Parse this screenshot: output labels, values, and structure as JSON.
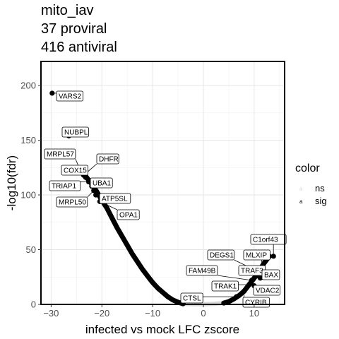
{
  "chart_data": {
    "type": "scatter",
    "title_lines": [
      "mito_iav",
      "37 proviral",
      "416 antiviral"
    ],
    "xlabel": "infected vs mock LFC zscore",
    "ylabel": "-log10(fdr)",
    "xlim": [
      -32,
      16
    ],
    "ylim": [
      0,
      222
    ],
    "x_ticks": [
      -30,
      -20,
      -10,
      0,
      10
    ],
    "x_tick_labels": [
      "−30",
      "−20",
      "−10",
      "0",
      "10"
    ],
    "y_ticks": [
      0,
      50,
      100,
      150,
      200
    ],
    "y_tick_labels": [
      "0",
      "50",
      "100",
      "150",
      "200"
    ],
    "grid": true,
    "legend": {
      "title": "color",
      "placement": "right",
      "entries": [
        {
          "key": "a",
          "label": "ns",
          "color": "#d9d9d9"
        },
        {
          "key": "a",
          "label": "sig",
          "color": "#000000"
        }
      ]
    },
    "curve": {
      "description_color_sig": "#000000",
      "description_color_ns": "#d9d9d9",
      "left_points": [
        [
          -24.0,
          122
        ],
        [
          -23.0,
          116
        ],
        [
          -22.0,
          110
        ],
        [
          -21.0,
          103
        ],
        [
          -20.0,
          95
        ],
        [
          -19.0,
          88
        ],
        [
          -18.0,
          79
        ],
        [
          -17.0,
          70
        ],
        [
          -16.0,
          62
        ],
        [
          -15.0,
          54
        ],
        [
          -14.0,
          46
        ],
        [
          -13.0,
          39
        ],
        [
          -12.0,
          32
        ],
        [
          -11.0,
          26
        ],
        [
          -10.0,
          20
        ],
        [
          -9.0,
          15
        ],
        [
          -8.0,
          11
        ],
        [
          -7.0,
          7
        ],
        [
          -6.0,
          4
        ],
        [
          -5.0,
          2
        ],
        [
          -4.0,
          0.5
        ]
      ],
      "ns_points": [
        [
          -4.0,
          0.5
        ],
        [
          -2.0,
          0.2
        ],
        [
          0.0,
          0.2
        ],
        [
          2.0,
          0.5
        ],
        [
          4.0,
          1.2
        ]
      ],
      "right_points": [
        [
          4.0,
          1.2
        ],
        [
          5.0,
          2.5
        ],
        [
          6.0,
          5
        ],
        [
          7.0,
          8
        ],
        [
          8.0,
          12
        ],
        [
          9.0,
          18
        ],
        [
          10.0,
          24
        ],
        [
          11.0,
          31
        ],
        [
          12.0,
          38
        ],
        [
          13.0,
          44
        ]
      ]
    },
    "points": [
      {
        "label": "VARS2",
        "x": -29.8,
        "y": 193,
        "color": "#000000"
      },
      {
        "label": "NUBPL",
        "x": -26.5,
        "y": 154,
        "color": "#000000"
      },
      {
        "label": "MRPL57",
        "x": -24.2,
        "y": 122,
        "color": "#000000"
      },
      {
        "label": "DHFR",
        "x": -23.6,
        "y": 118,
        "color": "#000000"
      },
      {
        "label": "COX15",
        "x": -23.2,
        "y": 116,
        "color": "#000000"
      },
      {
        "label": "TRIAP1",
        "x": -22.6,
        "y": 112,
        "color": "#000000"
      },
      {
        "label": "UBA1",
        "x": -22.0,
        "y": 108,
        "color": "#000000"
      },
      {
        "label": "MRPL50",
        "x": -21.6,
        "y": 104,
        "color": "#000000"
      },
      {
        "label": "ATP5SL",
        "x": -21.2,
        "y": 100,
        "color": "#000000"
      },
      {
        "label": "OPA1",
        "x": -20.4,
        "y": 94,
        "color": "#000000"
      },
      {
        "label": "C1orf43",
        "x": 13.8,
        "y": 44,
        "color": "#000000"
      },
      {
        "label": "MLXIP",
        "x": 11.5,
        "y": 34,
        "color": "#000000"
      },
      {
        "label": "DEGS1",
        "x": 10.8,
        "y": 30,
        "color": "#000000"
      },
      {
        "label": "TRAF3",
        "x": 10.6,
        "y": 26,
        "color": "#000000"
      },
      {
        "label": "FAM49B",
        "x": 9.5,
        "y": 22,
        "color": "#000000"
      },
      {
        "label": "BAX",
        "x": 11.2,
        "y": 24,
        "color": "#000000"
      },
      {
        "label": "TRAK1",
        "x": 9.0,
        "y": 18,
        "color": "#000000"
      },
      {
        "label": "VDAC2",
        "x": 10.0,
        "y": 17,
        "color": "#000000"
      },
      {
        "label": "CTSL",
        "x": 6.5,
        "y": 7,
        "color": "#000000"
      },
      {
        "label": "CYRIB",
        "x": 8.0,
        "y": 12,
        "color": "#000000"
      }
    ]
  }
}
